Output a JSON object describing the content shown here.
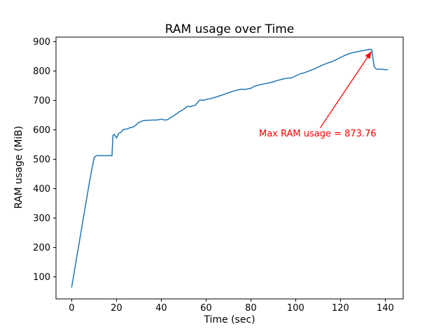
{
  "figure": {
    "title": "RAM usage over Time",
    "xlabel": "Time (sec)",
    "ylabel": "RAM usage (MiB)"
  },
  "chart_data": {
    "type": "line",
    "title": "RAM usage over Time",
    "xlabel": "Time (sec)",
    "ylabel": "RAM usage (MiB)",
    "xlim": [
      -7,
      148
    ],
    "ylim": [
      25,
      915
    ],
    "xticks": [
      0,
      20,
      40,
      60,
      80,
      100,
      120,
      140
    ],
    "yticks": [
      100,
      200,
      300,
      400,
      500,
      600,
      700,
      800,
      900
    ],
    "grid": false,
    "legend_position": "none",
    "max_value": 873.76,
    "annotation": {
      "text": "Max RAM usage = 873.76",
      "color": "#ff0000",
      "arrow_tail": {
        "x": 111,
        "y": 607
      },
      "arrow_tip": {
        "x": 133.8,
        "y": 866
      }
    },
    "series": [
      {
        "name": "RAM usage (MiB)",
        "color": "#1f77b4",
        "x": [
          0,
          2,
          4,
          6,
          8,
          10,
          11,
          12,
          14,
          16,
          18,
          18.4,
          19,
          20,
          20.6,
          21,
          22,
          23,
          24,
          25,
          26,
          27,
          28,
          29,
          30,
          31,
          32,
          34,
          36,
          38,
          40,
          41,
          42,
          43,
          44,
          45,
          46,
          47,
          48,
          49,
          50,
          51,
          52,
          53,
          54,
          55,
          56,
          57,
          58,
          59,
          60,
          62,
          64,
          66,
          68,
          70,
          72,
          74,
          75,
          76,
          77,
          78,
          80,
          81,
          82,
          84,
          86,
          88,
          90,
          92,
          94,
          96,
          98,
          100,
          102,
          104,
          106,
          108,
          110,
          112,
          114,
          116,
          118,
          120,
          122,
          124,
          126,
          128,
          130,
          131,
          132,
          133,
          134,
          135,
          136,
          138,
          140,
          141
        ],
        "y": [
          65,
          155,
          245,
          335,
          425,
          505,
          512,
          512,
          512,
          512,
          512,
          580,
          585,
          572,
          580,
          588,
          591,
          601,
          602,
          603,
          607,
          608,
          612,
          618,
          625,
          628,
          631,
          632,
          633,
          633,
          636,
          634,
          633,
          635,
          641,
          645,
          650,
          655,
          661,
          665,
          670,
          676,
          680,
          678,
          681,
          683,
          690,
          700,
          701,
          700,
          703,
          706,
          710,
          715,
          720,
          726,
          731,
          735,
          737,
          738,
          737,
          738,
          741,
          746,
          749,
          753,
          756,
          759,
          763,
          768,
          772,
          775,
          776,
          783,
          790,
          794,
          800,
          806,
          813,
          820,
          826,
          831,
          838,
          846,
          853,
          859,
          863,
          866,
          869,
          870,
          872,
          873.76,
          872,
          815,
          806,
          806,
          804,
          804
        ]
      }
    ]
  }
}
